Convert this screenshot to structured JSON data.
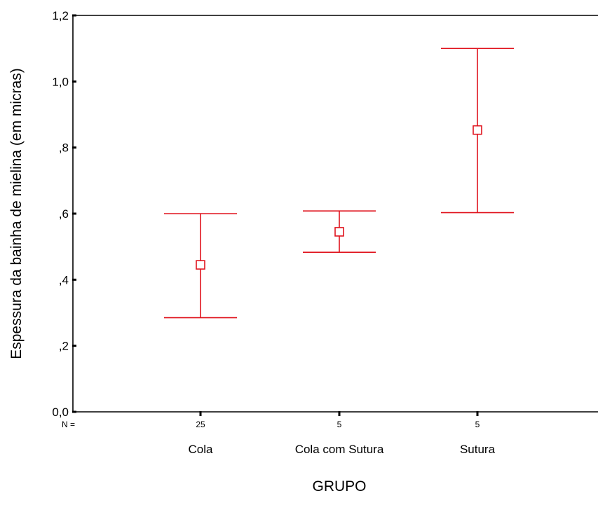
{
  "chart_data": {
    "type": "errorbar",
    "title": "",
    "xlabel": "GRUPO",
    "ylabel": "Espessura da bainha de mielina (em micras)",
    "ylim": [
      0.0,
      1.2
    ],
    "yticks": [
      {
        "value": 0.0,
        "label": "0,0"
      },
      {
        "value": 0.2,
        "label": ",2"
      },
      {
        "value": 0.4,
        "label": ",4"
      },
      {
        "value": 0.6,
        "label": ",6"
      },
      {
        "value": 0.8,
        "label": ",8"
      },
      {
        "value": 1.0,
        "label": "1,0"
      },
      {
        "value": 1.2,
        "label": "1,2"
      }
    ],
    "n_prefix": "N =",
    "categories": [
      "Cola",
      "Cola com Sutura",
      "Sutura"
    ],
    "n": [
      "25",
      "5",
      "5"
    ],
    "mean": [
      0.445,
      0.545,
      0.853
    ],
    "lower": [
      0.285,
      0.483,
      0.603
    ],
    "upper": [
      0.6,
      0.608,
      1.1
    ],
    "color": "#e0141e",
    "grid": false
  }
}
